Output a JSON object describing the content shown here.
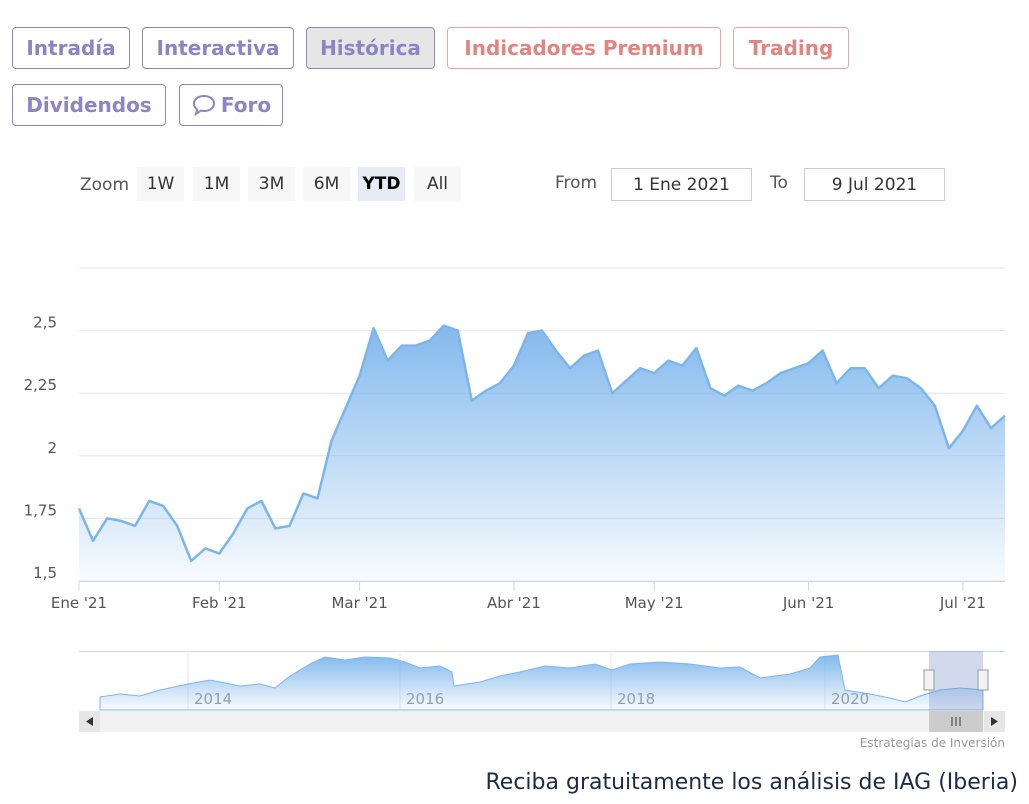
{
  "tabs": [
    "Intradía",
    "Interactiva",
    "Histórica",
    "Indicadores Premium",
    "Trading",
    "Dividendos",
    "Foro"
  ],
  "zoom": {
    "label": "Zoom",
    "buttons": [
      "1W",
      "1M",
      "3M",
      "6M",
      "YTD",
      "All"
    ],
    "selected": 4
  },
  "range": {
    "from_label": "From",
    "from": "1 Ene 2021",
    "to_label": "To",
    "to": "9 Jul 2021"
  },
  "navigator": {
    "labels": [
      "2014",
      "2016",
      "2018",
      "2020"
    ]
  },
  "credits": "Estrategias de Inversión",
  "footer_text": "Reciba gratuitamente los análisis de IAG (Iberia)",
  "chart_data": {
    "type": "area",
    "categories": [
      "Ene '21",
      null,
      null,
      null,
      null,
      null,
      null,
      null,
      null,
      null,
      "Feb '21",
      null,
      null,
      null,
      null,
      null,
      null,
      null,
      null,
      null,
      "Mar '21",
      null,
      null,
      null,
      null,
      null,
      null,
      null,
      null,
      null,
      null,
      "Abr '21",
      null,
      null,
      null,
      null,
      null,
      null,
      null,
      null,
      null,
      "May '21",
      null,
      null,
      null,
      null,
      null,
      null,
      null,
      null,
      null,
      null,
      "Jun '21",
      null,
      null,
      null,
      null,
      null,
      null,
      null,
      null,
      null,
      null,
      "Jul '21",
      null,
      null,
      null
    ],
    "values": [
      1.79,
      1.66,
      1.75,
      1.74,
      1.72,
      1.82,
      1.8,
      1.72,
      1.58,
      1.63,
      1.61,
      1.69,
      1.79,
      1.82,
      1.71,
      1.72,
      1.85,
      1.83,
      2.06,
      2.19,
      2.32,
      2.51,
      2.38,
      2.44,
      2.44,
      2.46,
      2.52,
      2.5,
      2.22,
      2.26,
      2.29,
      2.36,
      2.49,
      2.5,
      2.42,
      2.35,
      2.4,
      2.42,
      2.25,
      2.3,
      2.35,
      2.33,
      2.38,
      2.36,
      2.43,
      2.27,
      2.24,
      2.28,
      2.26,
      2.29,
      2.33,
      2.35,
      2.37,
      2.42,
      2.29,
      2.35,
      2.35,
      2.27,
      2.32,
      2.31,
      2.27,
      2.2,
      2.03,
      2.1,
      2.2,
      2.11,
      2.16
    ],
    "color": "#7cb5ec",
    "ylim": [
      1.5,
      2.75
    ],
    "yticks": [
      {
        "value": 1.5,
        "label": "1,5"
      },
      {
        "value": 1.75,
        "label": "1,75"
      },
      2,
      {
        "value": 2.25,
        "label": "2,25"
      },
      {
        "value": 2.5,
        "label": "2,5"
      }
    ],
    "grid": true
  }
}
